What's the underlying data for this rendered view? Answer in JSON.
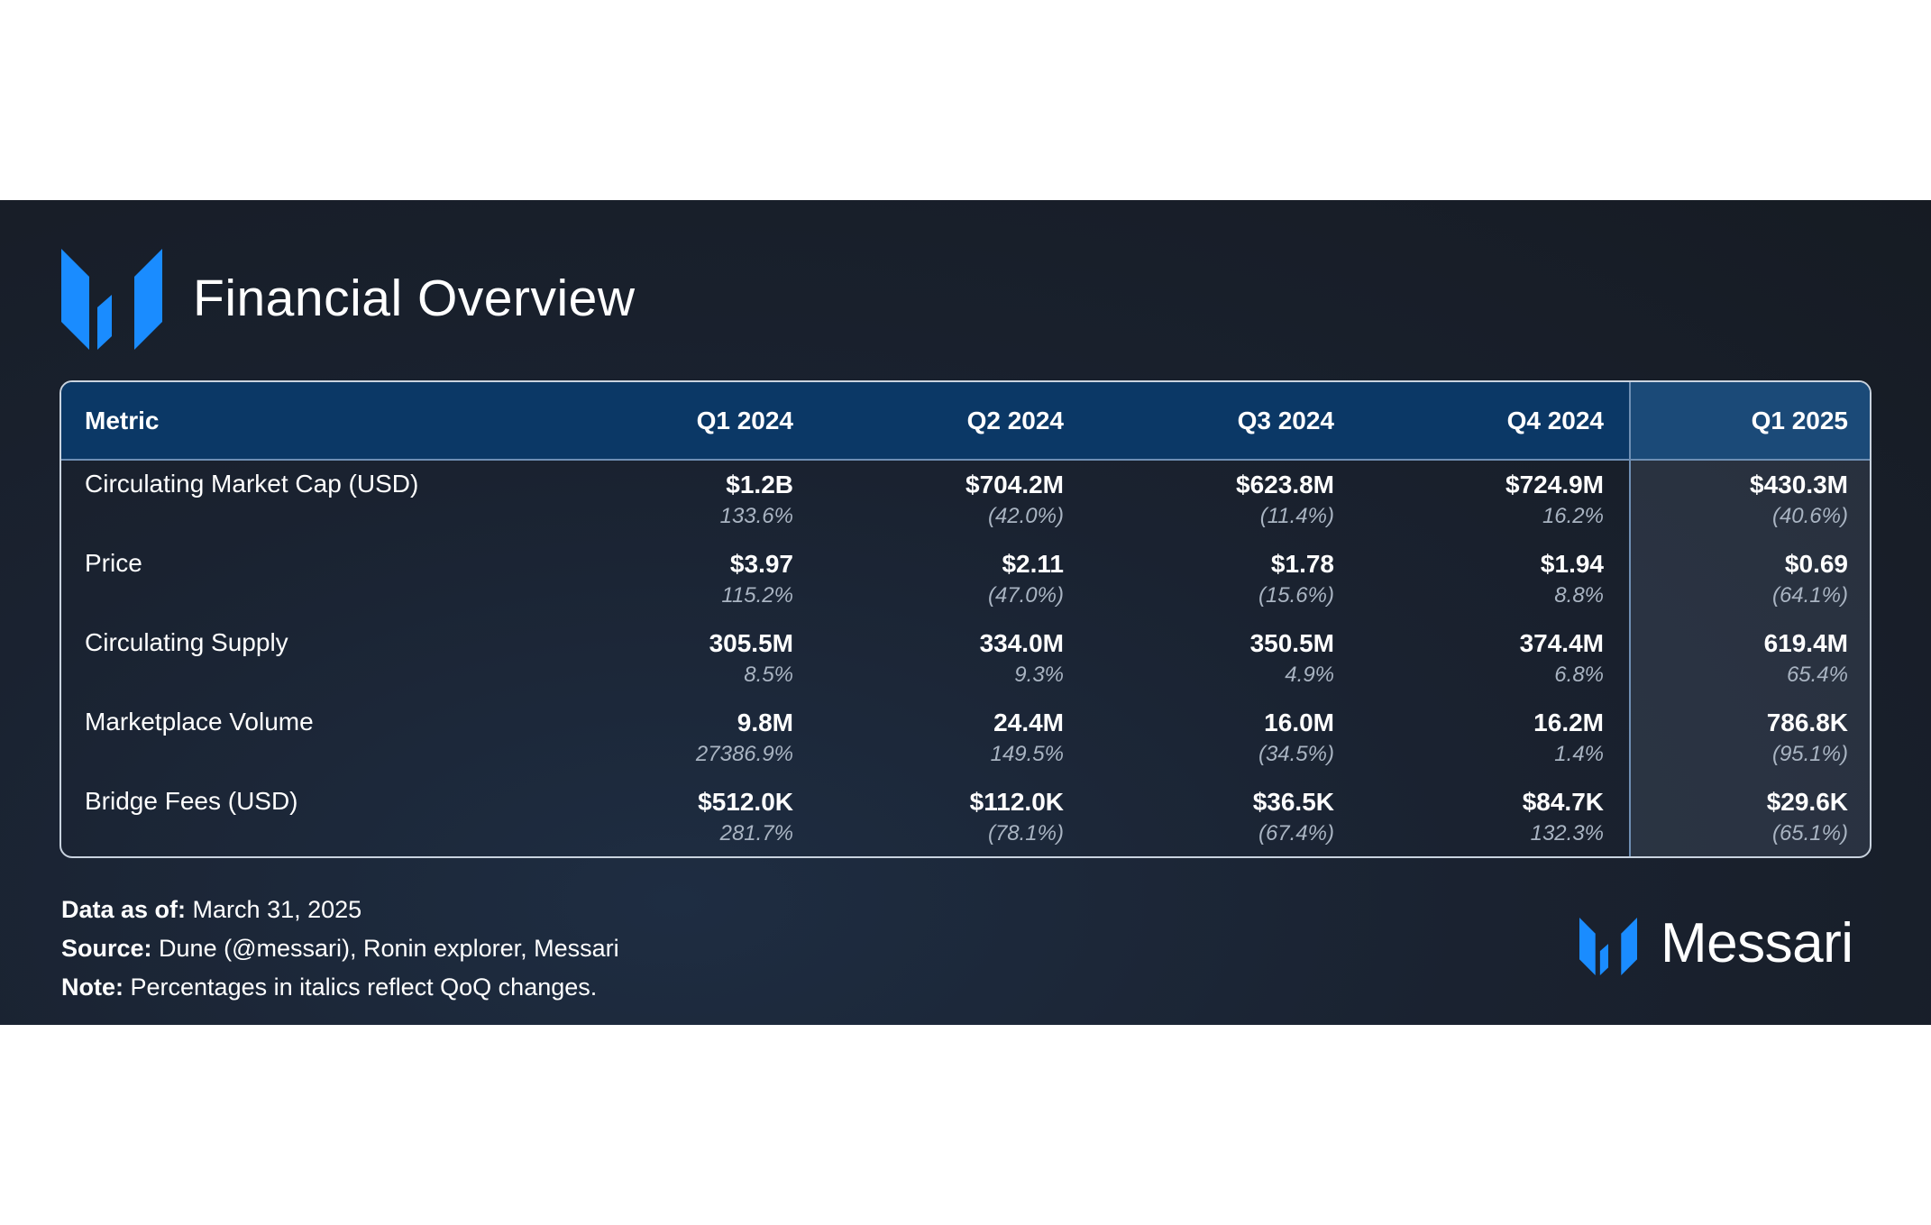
{
  "header": {
    "title": "Financial Overview"
  },
  "brand": {
    "name": "Messari",
    "logo_icon": "messari-logo-icon",
    "logo_color": "#1a8cff"
  },
  "colors": {
    "header_bg": "#0b3866",
    "highlight_col_bg": "#1b4a78",
    "banner_bg": "#161b23"
  },
  "chart_data": {
    "type": "table",
    "title": "Financial Overview",
    "columns": [
      "Metric",
      "Q1 2024",
      "Q2 2024",
      "Q3 2024",
      "Q4 2024",
      "Q1 2025"
    ],
    "rows": [
      {
        "metric": "Circulating Market Cap (USD)",
        "values": [
          "$1.2B",
          "$704.2M",
          "$623.8M",
          "$724.9M",
          "$430.3M"
        ],
        "changes": [
          "133.6%",
          "(42.0%)",
          "(11.4%)",
          "16.2%",
          "(40.6%)"
        ]
      },
      {
        "metric": "Price",
        "values": [
          "$3.97",
          "$2.11",
          "$1.78",
          "$1.94",
          "$0.69"
        ],
        "changes": [
          "115.2%",
          "(47.0%)",
          "(15.6%)",
          "8.8%",
          "(64.1%)"
        ]
      },
      {
        "metric": "Circulating Supply",
        "values": [
          "305.5M",
          "334.0M",
          "350.5M",
          "374.4M",
          "619.4M"
        ],
        "changes": [
          "8.5%",
          "9.3%",
          "4.9%",
          "6.8%",
          "65.4%"
        ]
      },
      {
        "metric": "Marketplace Volume",
        "values": [
          "9.8M",
          "24.4M",
          "16.0M",
          "16.2M",
          "786.8K"
        ],
        "changes": [
          "27386.9%",
          "149.5%",
          "(34.5%)",
          "1.4%",
          "(95.1%)"
        ]
      },
      {
        "metric": "Bridge Fees (USD)",
        "values": [
          "$512.0K",
          "$112.0K",
          "$36.5K",
          "$84.7K",
          "$29.6K"
        ],
        "changes": [
          "281.7%",
          "(78.1%)",
          "(67.4%)",
          "132.3%",
          "(65.1%)"
        ]
      }
    ]
  },
  "footer": {
    "data_as_of_label": "Data as of:",
    "data_as_of_value": " March 31, 2025",
    "source_label": "Source:",
    "source_value": " Dune (@messari), Ronin explorer, Messari",
    "note_label": "Note:",
    "note_value": " Percentages in italics reflect QoQ changes."
  }
}
